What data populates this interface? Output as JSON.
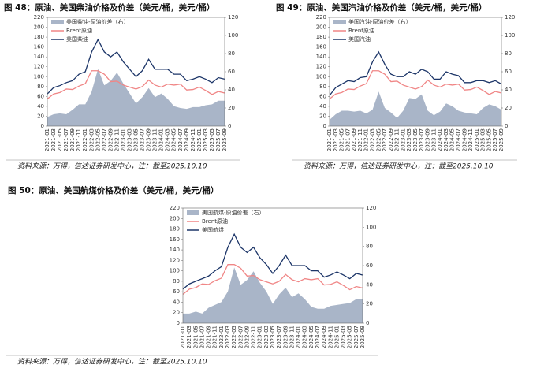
{
  "chart_data": [
    {
      "type": "line",
      "title": "图 48：原油、美国柴油价格及价差（美元/桶，美元/桶）",
      "source": "资料来源：万得，信达证券研发中心，注：截至2025.10.10",
      "categories": [
        "2021-01",
        "2021-03",
        "2021-05",
        "2021-07",
        "2021-09",
        "2021-11",
        "2022-01",
        "2022-03",
        "2022-05",
        "2022-07",
        "2022-09",
        "2022-11",
        "2023-01",
        "2023-03",
        "2023-05",
        "2023-07",
        "2023-09",
        "2023-11",
        "2024-01",
        "2024-03",
        "2024-05",
        "2024-07",
        "2024-09",
        "2024-11",
        "2025-01",
        "2025-03",
        "2025-05",
        "2025-07",
        "2025-09"
      ],
      "ylim": [
        0,
        220
      ],
      "yticks": [
        0,
        20,
        40,
        60,
        80,
        100,
        120,
        140,
        160,
        180,
        200,
        220
      ],
      "y2lim": [
        0,
        120
      ],
      "y2ticks": [
        0,
        20,
        40,
        60,
        80,
        100,
        120
      ],
      "series": [
        {
          "name": "美国柴油-原油价差（右）",
          "type": "area",
          "axis": "y2",
          "color": "#a9b5c8",
          "values": [
            10,
            13,
            14,
            13,
            18,
            24,
            24,
            38,
            63,
            45,
            50,
            59,
            47,
            36,
            25,
            32,
            42,
            32,
            36,
            30,
            22,
            20,
            19,
            21,
            21,
            23,
            24,
            28,
            28
          ]
        },
        {
          "name": "Brent原油",
          "color": "#f08686",
          "values": [
            55,
            65,
            68,
            75,
            74,
            81,
            86,
            112,
            112,
            105,
            90,
            91,
            83,
            79,
            75,
            80,
            93,
            83,
            79,
            85,
            83,
            85,
            73,
            74,
            79,
            72,
            64,
            70,
            67
          ]
        },
        {
          "name": "美国柴油",
          "color": "#1c3568",
          "values": [
            65,
            78,
            82,
            88,
            92,
            105,
            110,
            150,
            175,
            150,
            140,
            150,
            130,
            115,
            100,
            112,
            135,
            115,
            115,
            115,
            105,
            105,
            92,
            95,
            100,
            95,
            88,
            98,
            95
          ]
        }
      ]
    },
    {
      "type": "line",
      "title": "图 49：原油、美国汽油价格及价差（美元/桶，美元/桶）",
      "source": "资料来源：万得，信达证券研发中心，注：截至2025.10.10",
      "categories": [
        "2021-01",
        "2021-03",
        "2021-05",
        "2021-07",
        "2021-09",
        "2021-11",
        "2022-01",
        "2022-03",
        "2022-05",
        "2022-07",
        "2022-09",
        "2022-11",
        "2023-01",
        "2023-03",
        "2023-05",
        "2023-07",
        "2023-09",
        "2023-11",
        "2024-01",
        "2024-03",
        "2024-05",
        "2024-07",
        "2024-09",
        "2024-11",
        "2025-01",
        "2025-03",
        "2025-05",
        "2025-07",
        "2025-09"
      ],
      "ylim": [
        0,
        220
      ],
      "yticks": [
        0,
        20,
        40,
        60,
        80,
        100,
        120,
        140,
        160,
        180,
        200,
        220
      ],
      "y2lim": [
        0,
        120
      ],
      "y2ticks": [
        0,
        20,
        40,
        60,
        80,
        100,
        120
      ],
      "series": [
        {
          "name": "美国汽油-原油价差（右）",
          "type": "area",
          "axis": "y2",
          "color": "#a9b5c8",
          "values": [
            7,
            13,
            17,
            17,
            16,
            17,
            14,
            18,
            38,
            20,
            15,
            9,
            17,
            31,
            30,
            35,
            17,
            12,
            16,
            25,
            22,
            17,
            15,
            14,
            13,
            20,
            24,
            22,
            18
          ]
        },
        {
          "name": "Brent原油",
          "color": "#f08686",
          "values": [
            55,
            65,
            68,
            75,
            74,
            81,
            86,
            112,
            112,
            105,
            90,
            91,
            83,
            79,
            75,
            80,
            93,
            83,
            79,
            85,
            83,
            85,
            73,
            74,
            79,
            72,
            64,
            70,
            67
          ]
        },
        {
          "name": "美国汽油",
          "color": "#1c3568",
          "values": [
            62,
            78,
            85,
            92,
            90,
            98,
            100,
            130,
            150,
            125,
            105,
            100,
            100,
            110,
            105,
            115,
            110,
            95,
            95,
            110,
            105,
            102,
            88,
            88,
            92,
            92,
            88,
            92,
            85
          ]
        }
      ]
    },
    {
      "type": "line",
      "title": "图 50：原油、美国航煤价格及价差（美元/桶，美元/桶）",
      "source": "资料来源：万得，信达证券研发中心，注：截至2025.10.10",
      "categories": [
        "2021-01",
        "2021-03",
        "2021-05",
        "2021-07",
        "2021-09",
        "2021-11",
        "2022-01",
        "2022-03",
        "2022-05",
        "2022-07",
        "2022-09",
        "2022-11",
        "2023-01",
        "2023-03",
        "2023-05",
        "2023-07",
        "2023-09",
        "2023-11",
        "2024-01",
        "2024-03",
        "2024-05",
        "2024-07",
        "2024-09",
        "2024-11",
        "2025-01",
        "2025-03",
        "2025-05",
        "2025-07",
        "2025-09"
      ],
      "ylim": [
        0,
        220
      ],
      "yticks": [
        0,
        20,
        40,
        60,
        80,
        100,
        120,
        140,
        160,
        180,
        200,
        220
      ],
      "y2lim": [
        0,
        120
      ],
      "y2ticks": [
        0,
        20,
        40,
        60,
        80,
        100,
        120
      ],
      "series": [
        {
          "name": "美国航煤-原油价差（右）",
          "type": "area",
          "axis": "y2",
          "color": "#a9b5c8",
          "values": [
            10,
            10,
            12,
            10,
            16,
            19,
            22,
            33,
            58,
            40,
            45,
            54,
            42,
            33,
            20,
            30,
            37,
            27,
            31,
            25,
            17,
            15,
            15,
            18,
            19,
            20,
            21,
            25,
            25
          ]
        },
        {
          "name": "Brent原油",
          "color": "#f08686",
          "values": [
            55,
            65,
            68,
            75,
            74,
            81,
            86,
            112,
            112,
            105,
            90,
            91,
            83,
            79,
            75,
            80,
            93,
            83,
            79,
            85,
            83,
            85,
            73,
            74,
            79,
            72,
            64,
            70,
            67
          ]
        },
        {
          "name": "美国航煤",
          "color": "#1c3568",
          "values": [
            65,
            75,
            80,
            85,
            90,
            100,
            108,
            145,
            170,
            145,
            135,
            145,
            125,
            112,
            95,
            110,
            130,
            110,
            110,
            110,
            100,
            100,
            88,
            92,
            98,
            92,
            85,
            95,
            92
          ]
        }
      ]
    }
  ]
}
